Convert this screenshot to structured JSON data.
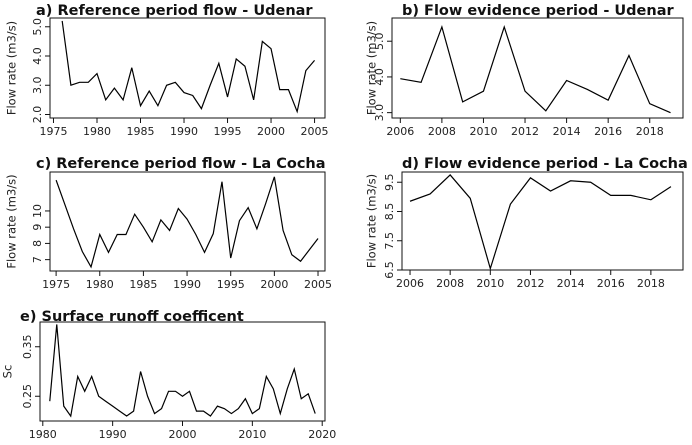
{
  "chart_data": [
    {
      "id": "a",
      "type": "line",
      "title": "a) Reference period flow - Udenar",
      "xlabel": "",
      "ylabel": "Flow rate (m3/s)",
      "xlim": [
        1974.6,
        2006.2
      ],
      "ylim": [
        1.88,
        5.3
      ],
      "xticks": [
        1975,
        1980,
        1985,
        1990,
        1995,
        2000,
        2005
      ],
      "yticks": [
        2.0,
        3.0,
        4.0,
        5.0
      ],
      "ytick_labels": [
        "2.0",
        "3.0",
        "4.0",
        "5.0"
      ],
      "x": [
        1976,
        1977,
        1978,
        1979,
        1980,
        1981,
        1982,
        1983,
        1984,
        1985,
        1986,
        1987,
        1988,
        1989,
        1990,
        1991,
        1992,
        1993,
        1994,
        1995,
        1996,
        1997,
        1998,
        1999,
        2000,
        2001,
        2002,
        2003,
        2004,
        2005
      ],
      "y": [
        5.2,
        3.0,
        3.1,
        3.1,
        3.4,
        2.5,
        2.9,
        2.5,
        3.6,
        2.3,
        2.8,
        2.3,
        3.0,
        3.1,
        2.75,
        2.65,
        2.2,
        3.0,
        3.75,
        2.6,
        3.9,
        3.65,
        2.5,
        4.5,
        4.25,
        2.85,
        2.85,
        2.1,
        3.5,
        3.85
      ],
      "grid": false
    },
    {
      "id": "b",
      "type": "line",
      "title": "b) Flow evidence period - Udenar",
      "xlabel": "",
      "ylabel": "Flow rate (m3/s)",
      "xlim": [
        2005.6,
        2019.6
      ],
      "ylim": [
        2.85,
        5.65
      ],
      "xticks": [
        2006,
        2008,
        2010,
        2012,
        2014,
        2016,
        2018
      ],
      "yticks": [
        3.0,
        4.0,
        5.0
      ],
      "ytick_labels": [
        "3.0",
        "4.0",
        "5.0"
      ],
      "x": [
        2006,
        2007,
        2008,
        2009,
        2010,
        2011,
        2012,
        2013,
        2014,
        2015,
        2016,
        2017,
        2018,
        2019
      ],
      "y": [
        3.95,
        3.85,
        5.4,
        3.3,
        3.6,
        5.4,
        3.6,
        3.05,
        3.9,
        3.65,
        3.35,
        4.6,
        3.25,
        3.0
      ],
      "grid": false
    },
    {
      "id": "c",
      "type": "line",
      "title": "c) Reference period flow - La Cocha",
      "xlabel": "",
      "ylabel": "Flow rate (m3/s)",
      "xlim": [
        1974.3,
        2005.8
      ],
      "ylim": [
        6.3,
        12.4
      ],
      "xticks": [
        1975,
        1980,
        1985,
        1990,
        1995,
        2000,
        2005
      ],
      "yticks": [
        7,
        8,
        9,
        10
      ],
      "ytick_labels": [
        "7",
        "8",
        "9",
        "10"
      ],
      "x": [
        1975,
        1976,
        1977,
        1978,
        1979,
        1980,
        1981,
        1982,
        1983,
        1984,
        1985,
        1986,
        1987,
        1988,
        1989,
        1990,
        1991,
        1992,
        1993,
        1994,
        1995,
        1996,
        1997,
        1998,
        1999,
        2000,
        2001,
        2002,
        2003,
        2004,
        2005
      ],
      "y": [
        11.9,
        10.4,
        8.9,
        7.5,
        6.55,
        8.55,
        7.45,
        8.55,
        8.55,
        9.8,
        9.0,
        8.1,
        9.45,
        8.8,
        10.15,
        9.5,
        8.55,
        7.45,
        8.6,
        11.8,
        7.1,
        9.4,
        10.2,
        8.9,
        10.45,
        12.1,
        8.8,
        7.3,
        6.9,
        7.6,
        8.3
      ],
      "grid": false
    },
    {
      "id": "d",
      "type": "line",
      "title": "d) Flow evidence period - La Cocha",
      "xlabel": "",
      "ylabel": "Flow rate (m3/s)",
      "xlim": [
        2005.6,
        2019.6
      ],
      "ylim": [
        6.5,
        9.85
      ],
      "xticks": [
        2006,
        2008,
        2010,
        2012,
        2014,
        2016,
        2018
      ],
      "yticks": [
        6.5,
        7.5,
        8.5,
        9.5
      ],
      "ytick_labels": [
        "6.5",
        "7.5",
        "8.5",
        "9.5"
      ],
      "x": [
        2006,
        2007,
        2008,
        2009,
        2010,
        2011,
        2012,
        2013,
        2014,
        2015,
        2016,
        2017,
        2018,
        2019
      ],
      "y": [
        8.85,
        9.1,
        9.75,
        8.95,
        6.55,
        8.75,
        9.65,
        9.2,
        9.55,
        9.5,
        9.05,
        9.05,
        8.9,
        9.35
      ],
      "grid": false
    },
    {
      "id": "e",
      "type": "line",
      "title": "e) Surface runoff coefficent",
      "xlabel": "",
      "ylabel": "Sc",
      "xlim": [
        1979.6,
        2020.4
      ],
      "ylim": [
        0.2,
        0.4
      ],
      "xticks": [
        1980,
        1990,
        2000,
        2010,
        2020
      ],
      "yticks": [
        0.25,
        0.35
      ],
      "ytick_labels": [
        "0.25",
        "0.35"
      ],
      "x": [
        1981,
        1982,
        1983,
        1984,
        1985,
        1986,
        1987,
        1988,
        1989,
        1990,
        1991,
        1992,
        1993,
        1994,
        1995,
        1996,
        1997,
        1998,
        1999,
        2000,
        2001,
        2002,
        2003,
        2004,
        2005,
        2006,
        2007,
        2008,
        2009,
        2010,
        2011,
        2012,
        2013,
        2014,
        2015,
        2016,
        2017,
        2018,
        2019
      ],
      "y": [
        0.24,
        0.395,
        0.23,
        0.21,
        0.29,
        0.26,
        0.29,
        0.25,
        0.24,
        0.23,
        0.22,
        0.21,
        0.22,
        0.3,
        0.25,
        0.215,
        0.225,
        0.26,
        0.26,
        0.25,
        0.26,
        0.22,
        0.22,
        0.21,
        0.23,
        0.225,
        0.215,
        0.225,
        0.245,
        0.215,
        0.225,
        0.29,
        0.265,
        0.215,
        0.265,
        0.305,
        0.245,
        0.255,
        0.215
      ],
      "grid": false
    }
  ]
}
